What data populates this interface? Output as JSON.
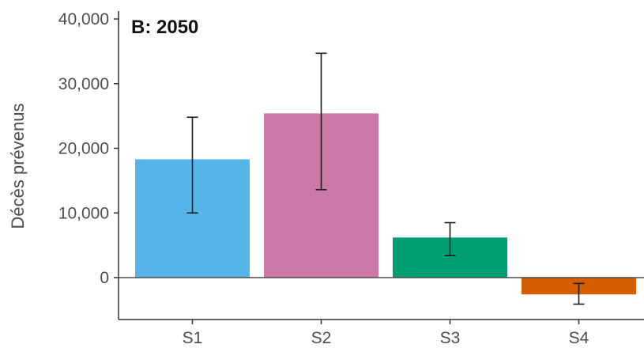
{
  "chart_data": {
    "type": "bar",
    "title": "B: 2050",
    "xlabel": "",
    "ylabel": "Décès prévenus",
    "categories": [
      "S1",
      "S2",
      "S3",
      "S4"
    ],
    "values": [
      18300,
      25400,
      6200,
      -2600
    ],
    "error_low": [
      10000,
      13600,
      3400,
      -4100
    ],
    "error_high": [
      24800,
      34700,
      8500,
      -900
    ],
    "colors": [
      "#56b4e9",
      "#cc79a7",
      "#009e73",
      "#d55e00"
    ],
    "ylim": [
      -6500,
      40000
    ],
    "yticks": [
      0,
      10000,
      20000,
      30000,
      40000
    ],
    "ytick_labels": [
      "0",
      "10,000",
      "20,000",
      "30,000",
      "40,000"
    ],
    "grid": false,
    "legend": "none"
  }
}
